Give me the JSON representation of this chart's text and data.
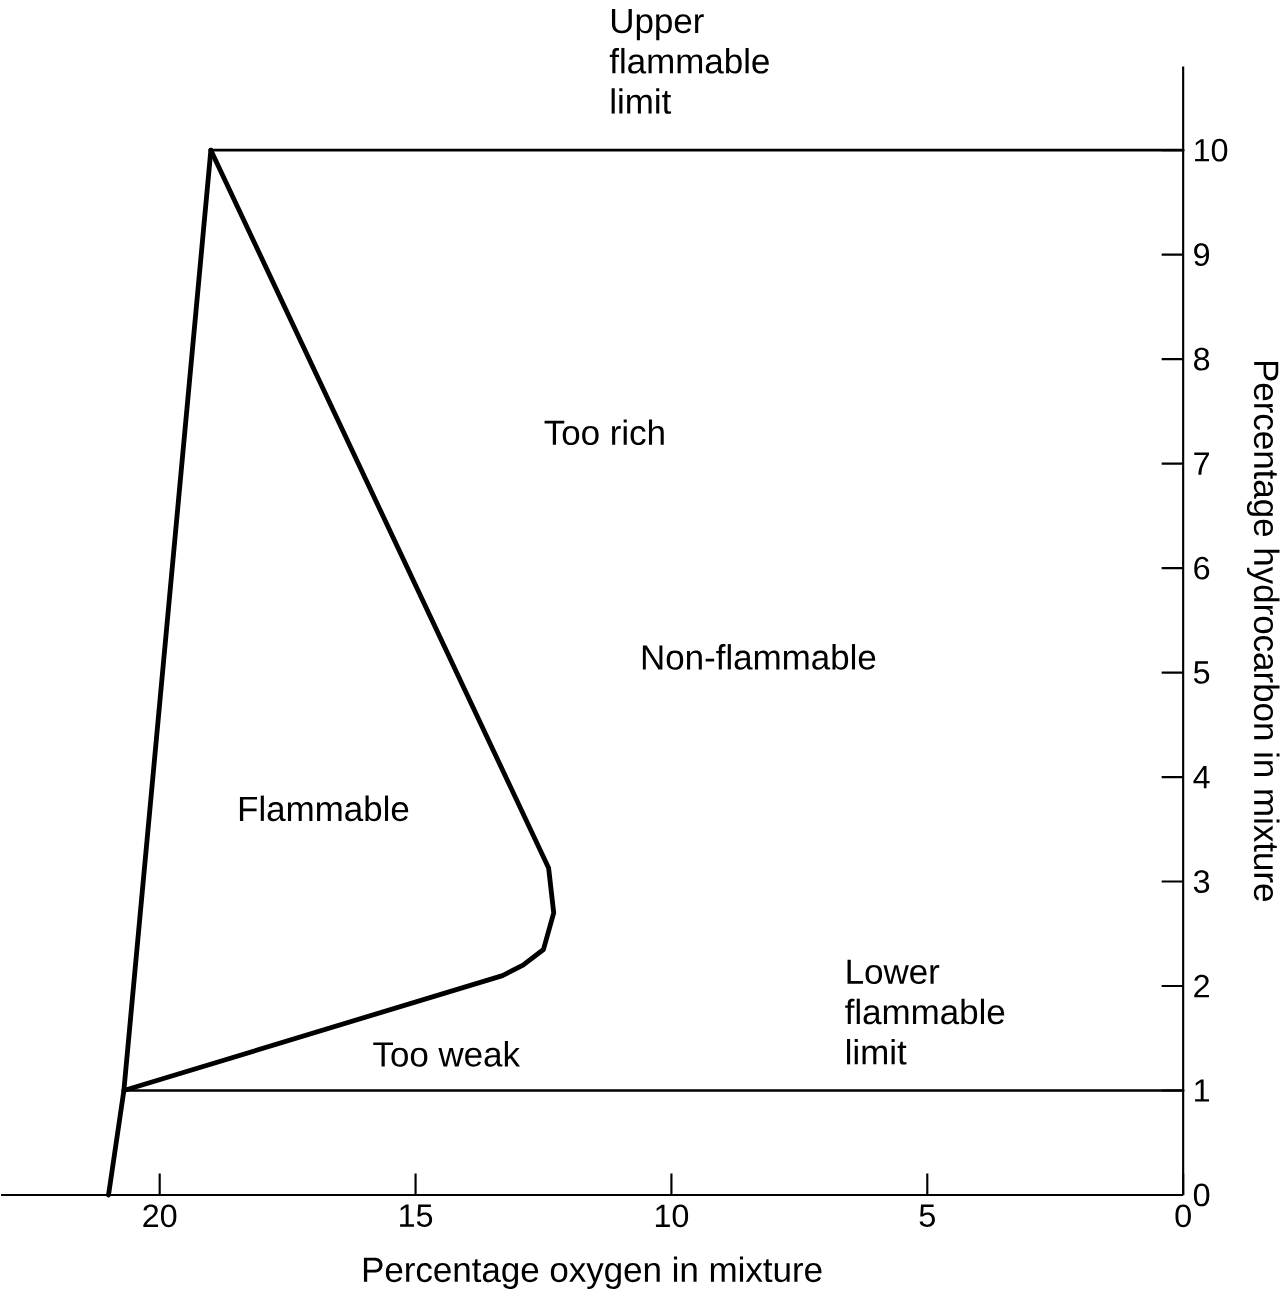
{
  "chart_data": {
    "type": "line",
    "xlabel": "Percentage oxygen in mixture",
    "ylabel": "Percentage hydrocarbon in mixture",
    "xlim": [
      23.1,
      0
    ],
    "ylim": [
      0,
      10.8
    ],
    "xticks": [
      20,
      15,
      10,
      5,
      0
    ],
    "yticks": [
      0,
      1,
      2,
      3,
      4,
      5,
      6,
      7,
      8,
      9,
      10
    ],
    "grid": false,
    "marker": "none",
    "line_style": "solid",
    "series": [
      {
        "color": "#000000",
        "x": [
          21,
          20.7,
          19
        ],
        "values": [
          0,
          1,
          10
        ]
      },
      {
        "color": "#000000",
        "x": [
          19,
          12.4,
          12.3,
          12.5,
          12.9,
          13.3,
          20.7
        ],
        "values": [
          10,
          3.13,
          2.7,
          2.35,
          2.2,
          2.1,
          1
        ]
      },
      {
        "color": "#000000",
        "x": [
          19,
          0
        ],
        "values": [
          10,
          10
        ]
      },
      {
        "color": "#000000",
        "x": [
          20.7,
          0
        ],
        "values": [
          1,
          1
        ]
      }
    ],
    "annotations": [
      "Upper flammable limit",
      "Too rich",
      "Non-flammable",
      "Flammable",
      "Too weak",
      "Lower flammable limit"
    ]
  }
}
